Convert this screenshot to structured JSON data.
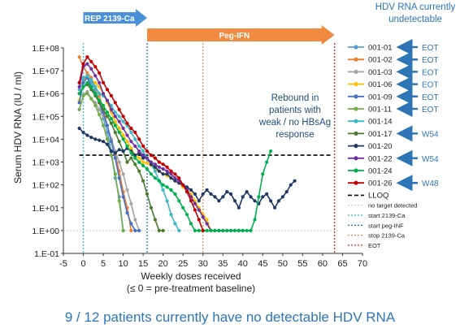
{
  "annotations": {
    "hdv_note_line1": "HDV RNA currently",
    "hdv_note_line2": "undetectable",
    "rebound_line1": "Rebound in",
    "rebound_line2": "patients with",
    "rebound_line3": "weak / no HBsAg",
    "rebound_line4": "response",
    "footer": "9 / 12 patients currently have no detectable HDV RNA",
    "rep_arrow": "REP 2139-Ca",
    "peg_arrow": "Peg-IFN"
  },
  "colors": {
    "rep_arrow": "#4a90d9",
    "peg_arrow": "#f08a3e",
    "callout_arrow": "#2e75b6",
    "lloq": "#000000"
  },
  "chart_data": {
    "type": "line",
    "xlabel_line1": "Weekly doses received",
    "xlabel_line2": "(≤ 0 = pre-treatment baseline)",
    "ylabel": "Serum HDV RNA (IU / ml)",
    "xlim": [
      -5,
      70
    ],
    "ylim": [
      0.1,
      100000000
    ],
    "y_scale": "log",
    "x_ticks": [
      -5,
      0,
      5,
      10,
      15,
      20,
      25,
      30,
      35,
      40,
      45,
      50,
      55,
      60,
      65,
      70
    ],
    "y_tick_labels": [
      "1.E-01",
      "1.E+00",
      "1.E+01",
      "1.E+02",
      "1.E+03",
      "1.E+04",
      "1.E+05",
      "1.E+06",
      "1.E+07",
      "1.E+08"
    ],
    "grid": false,
    "legend_position": "right",
    "lloq": 2000,
    "no_target_detected": 1,
    "start_rep": 0,
    "start_peg": 16,
    "stop_rep": 30,
    "eot": 63,
    "series": [
      {
        "name": "001-01",
        "color": "#5b9bd5",
        "callout": "EOT",
        "x": [
          -1,
          0,
          1,
          2,
          3,
          4,
          5,
          6,
          7,
          8,
          9,
          10
        ],
        "y": [
          1500000,
          4000000,
          6000000,
          3000000,
          1500000,
          400000,
          80000,
          20000,
          3000,
          200,
          30,
          1
        ]
      },
      {
        "name": "001-02",
        "color": "#ed7d31",
        "callout": "EOT",
        "x": [
          -1,
          0,
          1,
          2,
          3,
          4,
          5,
          6,
          7,
          8,
          9,
          10,
          11,
          12
        ],
        "y": [
          40000000,
          15000000,
          8000000,
          5000000,
          2000000,
          800000,
          200000,
          40000,
          8000,
          2000,
          400,
          50,
          10,
          1
        ]
      },
      {
        "name": "001-03",
        "color": "#a5a5a5",
        "callout": "EOT",
        "x": [
          -1,
          0,
          1,
          2,
          3,
          4,
          5,
          6,
          7,
          8,
          9,
          10,
          11,
          12,
          13,
          14
        ],
        "y": [
          1000000,
          900000,
          1200000,
          600000,
          400000,
          200000,
          100000,
          40000,
          10000,
          3000,
          1000,
          300,
          60,
          15,
          3,
          1
        ]
      },
      {
        "name": "001-06",
        "color": "#ffc000",
        "callout": "EOT",
        "x": [
          -1,
          0,
          1,
          2,
          3,
          4,
          5,
          6,
          7,
          8,
          9,
          10,
          11,
          12,
          13,
          14,
          15,
          16,
          17,
          18,
          19,
          20,
          21,
          22,
          23,
          24,
          25,
          26,
          27,
          28,
          29,
          30,
          31,
          32,
          33,
          34
        ],
        "y": [
          500000,
          3000000,
          6000000,
          4000000,
          3000000,
          2000000,
          1000000,
          400000,
          150000,
          60000,
          30000,
          15000,
          8000,
          4000,
          2000,
          1500,
          1000,
          900,
          700,
          500,
          400,
          300,
          250,
          200,
          150,
          120,
          80,
          60,
          40,
          20,
          10,
          5,
          3,
          1,
          1,
          1
        ]
      },
      {
        "name": "001-09",
        "color": "#4472c4",
        "callout": "EOT",
        "x": [
          -1,
          0,
          1,
          2,
          3,
          4,
          5,
          6,
          7,
          8,
          9,
          10,
          11,
          12,
          13,
          14
        ],
        "y": [
          400000,
          3000000,
          5000000,
          2000000,
          1000000,
          400000,
          150000,
          40000,
          8000,
          1500,
          200,
          30,
          6,
          2,
          1,
          1
        ]
      },
      {
        "name": "001-11",
        "color": "#70ad47",
        "callout": "EOT",
        "x": [
          -1,
          0,
          1,
          2,
          3,
          4,
          5,
          6,
          7,
          8,
          9,
          10
        ],
        "y": [
          200000,
          800000,
          1000000,
          600000,
          300000,
          120000,
          40000,
          10000,
          2000,
          300,
          20,
          1
        ]
      },
      {
        "name": "001-14",
        "color": "#3db8c5",
        "callout": "",
        "x": [
          -1,
          0,
          1,
          2,
          3,
          4,
          5,
          6,
          7,
          8,
          9,
          10,
          11,
          12,
          13,
          14,
          15,
          16,
          17,
          18,
          19,
          20,
          21,
          22,
          23,
          24
        ],
        "y": [
          3000000,
          5000000,
          6000000,
          4000000,
          2000000,
          1000000,
          800000,
          500000,
          300000,
          150000,
          100000,
          60000,
          40000,
          20000,
          10000,
          5000,
          3000,
          1500,
          800,
          400,
          150,
          60,
          20,
          5,
          2,
          1
        ]
      },
      {
        "name": "001-17",
        "color": "#4a7a2c",
        "callout": "W54",
        "x": [
          -1,
          0,
          1,
          2,
          3,
          4,
          5,
          6,
          7,
          8,
          9,
          10,
          11,
          12,
          13,
          14,
          15,
          16,
          17,
          18,
          19,
          20
        ],
        "y": [
          1000000,
          2000000,
          2500000,
          1500000,
          800000,
          400000,
          200000,
          100000,
          50000,
          20000,
          8000,
          3000,
          1000,
          1500,
          800,
          400,
          150,
          40,
          10,
          3,
          1,
          1
        ]
      },
      {
        "name": "001-20",
        "color": "#1f3864",
        "callout": "",
        "x": [
          -1,
          0,
          1,
          2,
          3,
          4,
          5,
          6,
          7,
          8,
          9,
          10,
          11,
          12,
          13,
          14,
          15,
          16,
          17,
          18,
          19,
          20,
          21,
          22,
          23,
          24,
          25,
          26,
          27,
          28,
          29,
          30,
          31,
          32,
          33,
          34,
          35,
          36,
          37,
          38,
          39,
          40,
          41,
          42,
          43,
          44,
          45,
          46,
          47,
          48,
          49,
          50,
          51,
          52,
          53
        ],
        "y": [
          30000,
          20000,
          15000,
          12000,
          10000,
          9000,
          8000,
          6000,
          3000,
          2500,
          3500,
          3000,
          4000,
          3000,
          2000,
          2500,
          1500,
          1500,
          800,
          600,
          400,
          300,
          300,
          200,
          150,
          120,
          100,
          80,
          60,
          40,
          20,
          40,
          60,
          40,
          30,
          20,
          30,
          50,
          40,
          20,
          10,
          30,
          50,
          30,
          20,
          15,
          30,
          40,
          20,
          10,
          20,
          30,
          50,
          100,
          150
        ]
      },
      {
        "name": "001-22",
        "color": "#7030a0",
        "callout": "W54",
        "x": [
          -1,
          0,
          1,
          2,
          3,
          4,
          5,
          6,
          7,
          8,
          9,
          10,
          11,
          12,
          13,
          14,
          15,
          16,
          17,
          18,
          19,
          20,
          21,
          22,
          23,
          24,
          25,
          26,
          27,
          28,
          29,
          30,
          31,
          32,
          33,
          34,
          35,
          36,
          37,
          38,
          39,
          40
        ],
        "y": [
          2000000,
          15000000,
          20000000,
          12000000,
          6000000,
          3000000,
          1000000,
          500000,
          200000,
          100000,
          60000,
          30000,
          15000,
          8000,
          5000,
          3000,
          2000,
          1500,
          1000,
          800,
          600,
          500,
          400,
          300,
          200,
          150,
          100,
          60,
          30,
          15,
          8,
          4,
          2,
          1,
          1,
          1,
          1,
          1,
          1,
          1,
          1,
          1
        ]
      },
      {
        "name": "001-24",
        "color": "#00b050",
        "callout": "",
        "x": [
          -1,
          0,
          1,
          2,
          3,
          4,
          5,
          6,
          7,
          8,
          9,
          10,
          11,
          12,
          13,
          14,
          15,
          16,
          17,
          18,
          19,
          20,
          21,
          22,
          23,
          24,
          25,
          26,
          27,
          28,
          29,
          30,
          31,
          32,
          33,
          34,
          35,
          36,
          37,
          38,
          39,
          40,
          41,
          42,
          43,
          44,
          45,
          46,
          47
        ],
        "y": [
          1000000,
          2000000,
          3000000,
          2000000,
          1000000,
          500000,
          300000,
          150000,
          80000,
          40000,
          20000,
          10000,
          5000,
          2500,
          1500,
          1000,
          700,
          500,
          300,
          200,
          150,
          100,
          80,
          60,
          40,
          20,
          10,
          5,
          2,
          1,
          1,
          1,
          1,
          1,
          1,
          1,
          1,
          1,
          1,
          1,
          1,
          1,
          1,
          1,
          3,
          30,
          300,
          1000,
          3000
        ]
      },
      {
        "name": "001-26",
        "color": "#c00000",
        "callout": "W48",
        "x": [
          -1,
          0,
          1,
          2,
          3,
          4,
          5,
          6,
          7,
          8,
          9,
          10,
          11,
          12,
          13,
          14,
          15,
          16,
          17,
          18,
          19,
          20,
          21,
          22,
          23,
          24,
          25,
          26,
          27,
          28,
          29,
          30
        ],
        "y": [
          3000000,
          20000000,
          40000000,
          25000000,
          15000000,
          8000000,
          3000000,
          1500000,
          800000,
          400000,
          200000,
          100000,
          50000,
          30000,
          20000,
          10000,
          5000,
          3000,
          2000,
          1500,
          1000,
          800,
          600,
          400,
          300,
          200,
          100,
          50,
          20,
          8,
          3,
          1
        ]
      }
    ],
    "legend_extra": [
      "LLOQ",
      "no target detected",
      "start 2139-Ca",
      "start peg-INF",
      "stop 2139-Ca",
      "EOT"
    ]
  }
}
